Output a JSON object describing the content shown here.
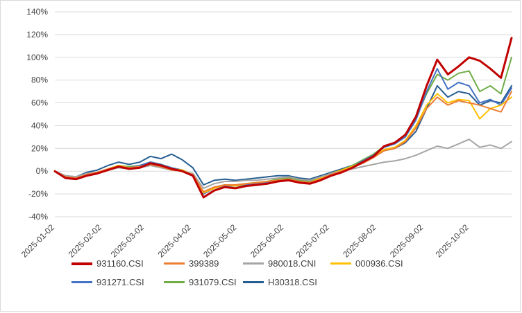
{
  "chart_data": {
    "type": "line",
    "title": "",
    "xlabel": "",
    "ylabel": "",
    "grid": true,
    "grid_color": "#d9d9d9",
    "axis_text_color": "#404040",
    "legend_position": "bottom",
    "ylim": [
      -40,
      140
    ],
    "y_ticks": [
      {
        "label": "140%",
        "value": 140
      },
      {
        "label": "120%",
        "value": 120
      },
      {
        "label": "100%",
        "value": 100
      },
      {
        "label": "80%",
        "value": 80
      },
      {
        "label": "60%",
        "value": 60
      },
      {
        "label": "40%",
        "value": 40
      },
      {
        "label": "20%",
        "value": 20
      },
      {
        "label": "0%",
        "value": 0
      },
      {
        "label": "-20%",
        "value": -20
      },
      {
        "label": "-40%",
        "value": -40
      }
    ],
    "x_tick_labels": [
      "2025-01-02",
      "2025-02-02",
      "2025-03-02",
      "2025-04-02",
      "2025-05-02",
      "2025-06-02",
      "2025-07-02",
      "2025-08-02",
      "2025-09-02",
      "2025-10-02"
    ],
    "x": [
      "2025-01-02",
      "2025-01-09",
      "2025-01-16",
      "2025-01-23",
      "2025-01-30",
      "2025-02-06",
      "2025-02-13",
      "2025-02-20",
      "2025-02-27",
      "2025-03-06",
      "2025-03-13",
      "2025-03-20",
      "2025-03-27",
      "2025-04-03",
      "2025-04-10",
      "2025-04-17",
      "2025-04-24",
      "2025-05-01",
      "2025-05-08",
      "2025-05-15",
      "2025-05-22",
      "2025-05-29",
      "2025-06-05",
      "2025-06-12",
      "2025-06-19",
      "2025-06-26",
      "2025-07-03",
      "2025-07-10",
      "2025-07-17",
      "2025-07-24",
      "2025-07-31",
      "2025-08-07",
      "2025-08-14",
      "2025-08-21",
      "2025-08-28",
      "2025-09-04",
      "2025-09-11",
      "2025-09-18",
      "2025-09-25",
      "2025-10-02",
      "2025-10-09",
      "2025-10-16",
      "2025-10-23",
      "2025-10-30"
    ],
    "series": [
      {
        "name": "931160.CSI",
        "color": "#c00000",
        "width": 3,
        "values": [
          0,
          -6,
          -7,
          -4,
          -2,
          1,
          4,
          2,
          3,
          7,
          5,
          2,
          0,
          -4,
          -23,
          -17,
          -14,
          -15,
          -13,
          -12,
          -11,
          -9,
          -8,
          -10,
          -11,
          -8,
          -4,
          -1,
          3,
          8,
          13,
          22,
          25,
          32,
          48,
          75,
          98,
          85,
          92,
          100,
          97,
          90,
          82,
          117
        ]
      },
      {
        "name": "399389",
        "color": "#ed7d31",
        "width": 2,
        "values": [
          0,
          -5,
          -6,
          -3,
          -1,
          2,
          4,
          3,
          4,
          6,
          4,
          1,
          0,
          -3,
          -18,
          -14,
          -12,
          -12,
          -11,
          -10,
          -9,
          -8,
          -7,
          -9,
          -10,
          -7,
          -3,
          0,
          3,
          7,
          12,
          18,
          20,
          26,
          38,
          55,
          65,
          58,
          62,
          60,
          58,
          55,
          52,
          70
        ]
      },
      {
        "name": "980018.CNI",
        "color": "#a5a5a5",
        "width": 2,
        "values": [
          0,
          -4,
          -5,
          -2,
          -1,
          1,
          3,
          2,
          3,
          5,
          3,
          1,
          0,
          -2,
          -15,
          -11,
          -9,
          -9,
          -8,
          -8,
          -7,
          -6,
          -5,
          -7,
          -8,
          -5,
          -2,
          0,
          2,
          4,
          6,
          8,
          9,
          11,
          14,
          18,
          22,
          20,
          24,
          28,
          21,
          23,
          20,
          26
        ]
      },
      {
        "name": "000936.CSI",
        "color": "#ffc000",
        "width": 2,
        "values": [
          0,
          -5,
          -6,
          -3,
          -1,
          2,
          5,
          3,
          4,
          6,
          4,
          2,
          1,
          -3,
          -19,
          -15,
          -12,
          -13,
          -11,
          -10,
          -9,
          -8,
          -7,
          -9,
          -10,
          -6,
          -2,
          1,
          4,
          8,
          13,
          19,
          21,
          27,
          40,
          58,
          68,
          60,
          63,
          62,
          46,
          55,
          58,
          65
        ]
      },
      {
        "name": "931271.CSI",
        "color": "#4472c4",
        "width": 2,
        "values": [
          0,
          -5,
          -7,
          -4,
          -2,
          2,
          5,
          3,
          5,
          8,
          6,
          3,
          1,
          -3,
          -20,
          -15,
          -13,
          -13,
          -12,
          -11,
          -10,
          -8,
          -7,
          -9,
          -10,
          -7,
          -3,
          0,
          4,
          9,
          14,
          21,
          24,
          30,
          45,
          70,
          90,
          72,
          78,
          75,
          60,
          63,
          58,
          73
        ]
      },
      {
        "name": "931079.CSI",
        "color": "#70ad47",
        "width": 2,
        "values": [
          0,
          -5,
          -6,
          -3,
          -1,
          2,
          5,
          4,
          5,
          8,
          6,
          3,
          1,
          -3,
          -19,
          -14,
          -12,
          -12,
          -11,
          -10,
          -9,
          -7,
          -6,
          -8,
          -9,
          -6,
          -2,
          1,
          5,
          10,
          15,
          22,
          25,
          32,
          47,
          68,
          85,
          80,
          86,
          88,
          70,
          75,
          68,
          100
        ]
      },
      {
        "name": "H30318.CSI",
        "color": "#255e91",
        "width": 2,
        "values": [
          0,
          -4,
          -5,
          -1,
          1,
          5,
          8,
          6,
          8,
          13,
          11,
          15,
          10,
          3,
          -12,
          -8,
          -7,
          -8,
          -7,
          -6,
          -5,
          -4,
          -4,
          -6,
          -7,
          -4,
          -1,
          2,
          5,
          9,
          13,
          18,
          20,
          25,
          35,
          55,
          75,
          65,
          70,
          68,
          58,
          62,
          60,
          75
        ]
      }
    ]
  }
}
